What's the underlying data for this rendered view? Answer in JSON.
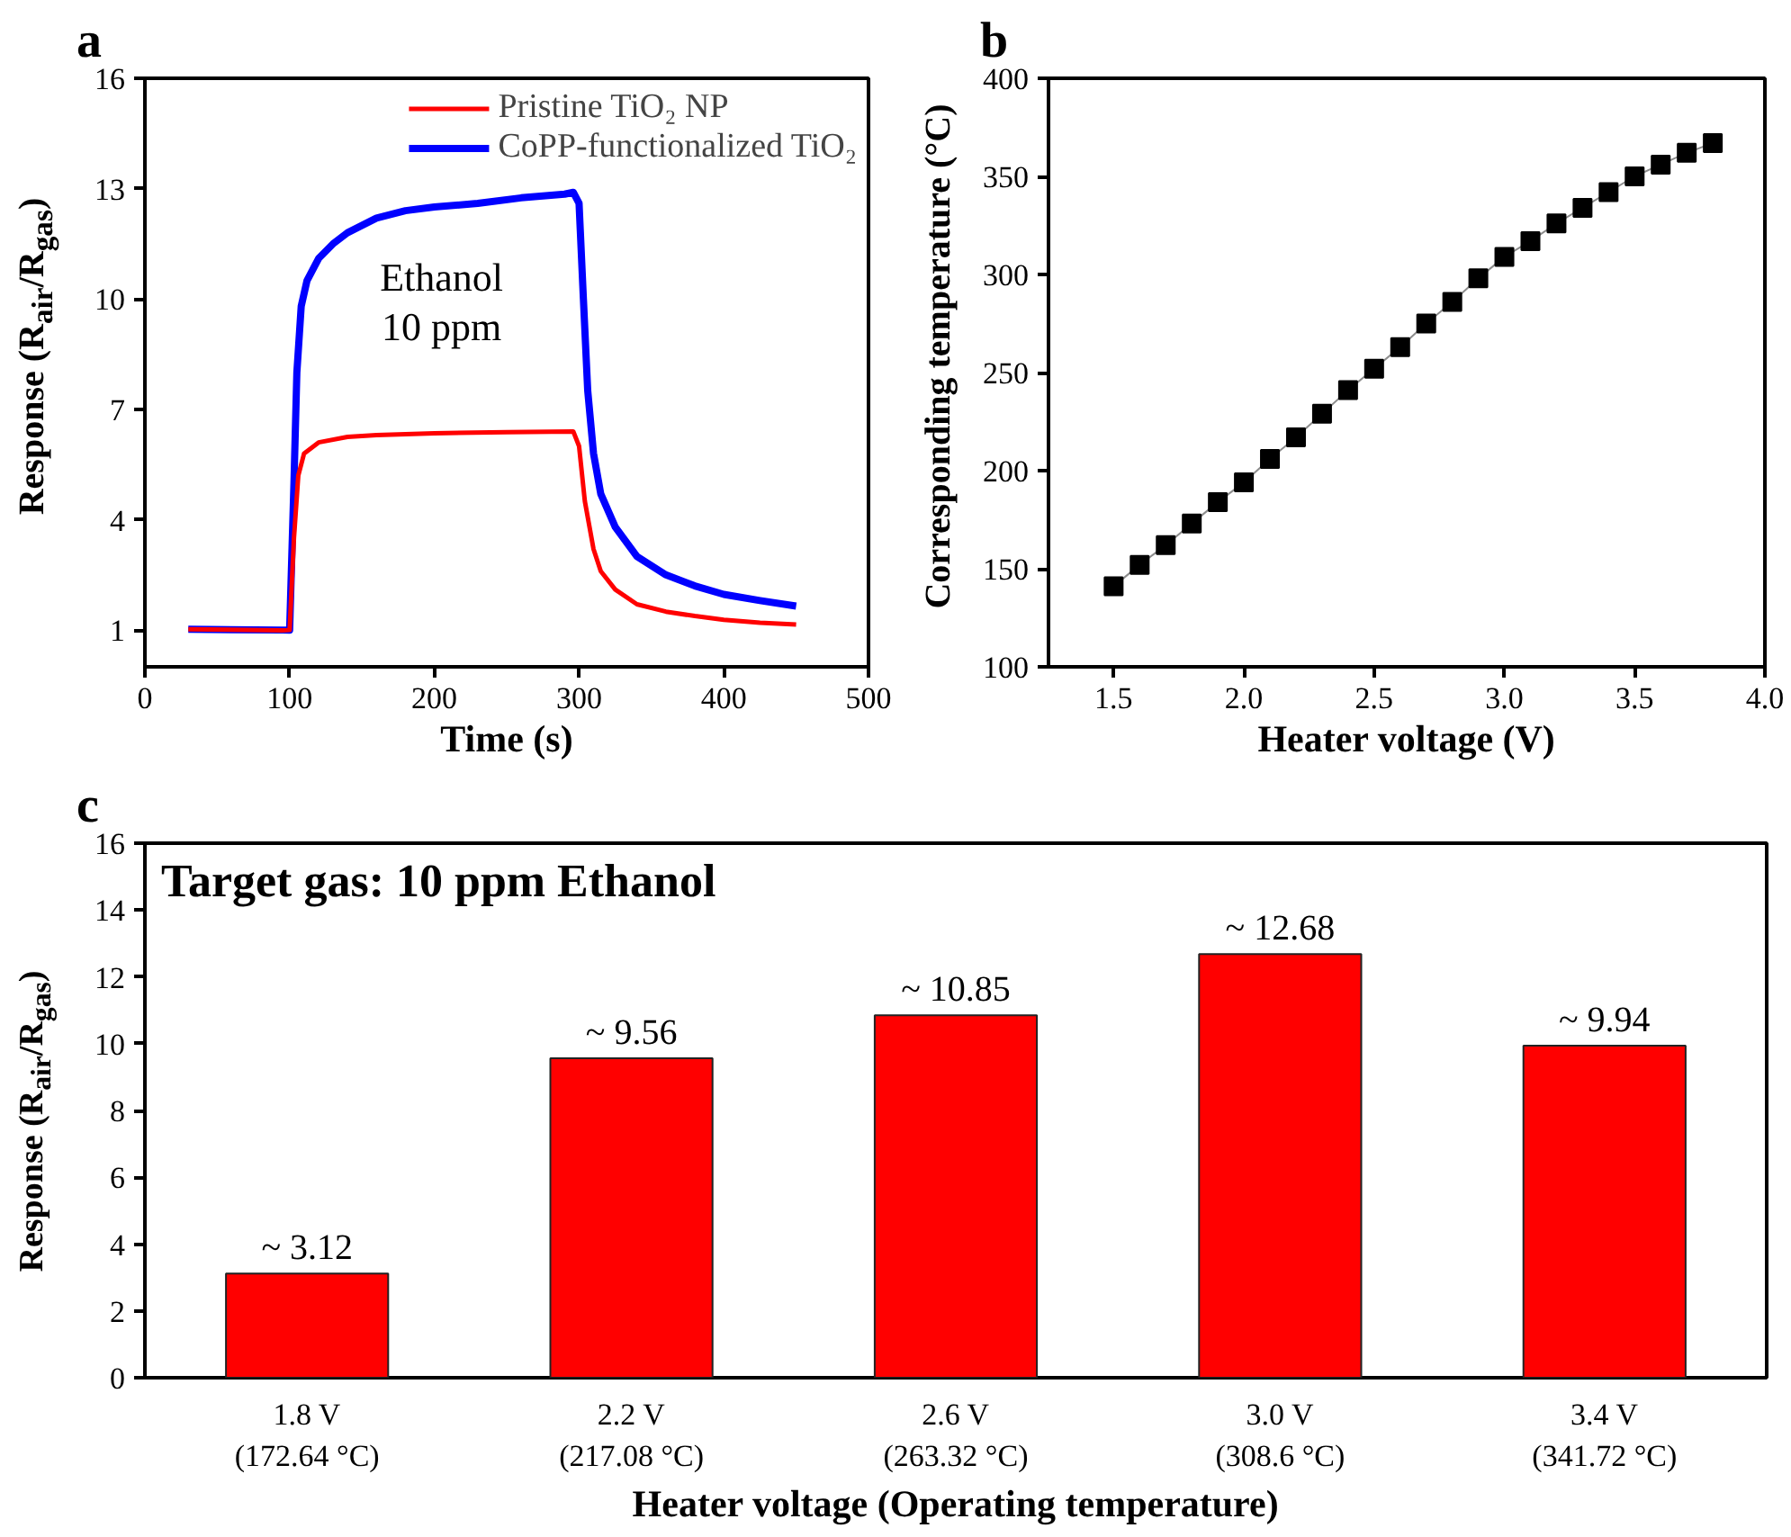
{
  "chart_data": [
    {
      "type": "line",
      "title": "a",
      "xlabel": "Time (s)",
      "ylabel": "Response (R$_{air}$/R$_{gas}$)",
      "xlim": [
        0,
        500
      ],
      "ylim": [
        0,
        16
      ],
      "xticks": [
        0,
        100,
        200,
        300,
        400,
        500
      ],
      "yticks": [
        1,
        4,
        7,
        10,
        13,
        16
      ],
      "legend": "top right",
      "annotations": [
        "Ethanol\n10 ppm"
      ],
      "series": [
        {
          "name": "Pristine TiO₂ NP",
          "color": "#ff0000",
          "x": [
            30,
            95,
            100,
            103,
            106,
            110,
            120,
            140,
            160,
            200,
            250,
            296,
            300,
            304,
            310,
            315,
            325,
            340,
            360,
            380,
            400,
            425,
            450
          ],
          "values": [
            1.02,
            0.99,
            1.0,
            3.5,
            5.2,
            5.8,
            6.1,
            6.25,
            6.3,
            6.35,
            6.38,
            6.4,
            6.0,
            4.5,
            3.2,
            2.6,
            2.1,
            1.7,
            1.5,
            1.38,
            1.28,
            1.2,
            1.15
          ]
        },
        {
          "name": "CoPP-functionalized TiO₂",
          "color": "#0000ff",
          "x": [
            30,
            95,
            100,
            103,
            105,
            108,
            112,
            120,
            130,
            140,
            160,
            180,
            200,
            230,
            260,
            290,
            296,
            300,
            303,
            306,
            310,
            315,
            325,
            340,
            360,
            380,
            400,
            425,
            450
          ],
          "values": [
            1.02,
            1.0,
            1.0,
            5.0,
            8.0,
            9.8,
            10.5,
            11.1,
            11.5,
            11.8,
            12.2,
            12.4,
            12.5,
            12.6,
            12.75,
            12.85,
            12.9,
            12.6,
            10.0,
            7.5,
            5.8,
            4.7,
            3.8,
            3.0,
            2.5,
            2.2,
            1.97,
            1.8,
            1.65
          ]
        }
      ]
    },
    {
      "type": "line",
      "title": "b",
      "xlabel": "Heater voltage (V)",
      "ylabel": "Corresponding temperature (°C)",
      "xlim": [
        1.25,
        4.0
      ],
      "ylim": [
        100,
        400
      ],
      "xticks": [
        {
          "value": 1.5,
          "label": "1.5"
        },
        {
          "value": 2.0,
          "label": "2.0"
        },
        {
          "value": 2.5,
          "label": "2.5"
        },
        {
          "value": 3.0,
          "label": "3.0"
        },
        {
          "value": 3.5,
          "label": "3.5"
        },
        {
          "value": 4.0,
          "label": "4.0"
        }
      ],
      "yticks": [
        100,
        150,
        200,
        250,
        300,
        350,
        400
      ],
      "marker": "square",
      "series": [
        {
          "color": "#000000",
          "x": [
            1.5,
            1.6,
            1.7,
            1.8,
            1.9,
            2.0,
            2.1,
            2.2,
            2.3,
            2.4,
            2.5,
            2.6,
            2.7,
            2.8,
            2.9,
            3.0,
            3.1,
            3.2,
            3.3,
            3.4,
            3.5,
            3.6,
            3.7,
            3.8
          ],
          "values": [
            141,
            152,
            162,
            173,
            184,
            194,
            206,
            217,
            229,
            241,
            252,
            263,
            275,
            286,
            298,
            309,
            317,
            326,
            334,
            342,
            350,
            356,
            362,
            367
          ]
        }
      ]
    },
    {
      "type": "bar",
      "title": "c",
      "xlabel": "Heater voltage (Operating temperature)",
      "ylabel": "Response (R$_{air}$/R$_{gas}$)",
      "categories": [
        "1.8 V\n(172.64 °C)",
        "2.2 V\n(217.08 °C)",
        "2.6 V\n(263.32 °C)",
        "3.0 V\n(308.6 °C)",
        "3.4 V\n(341.72 °C)"
      ],
      "values": [
        3.12,
        9.56,
        10.85,
        12.68,
        9.94
      ],
      "value_labels": [
        "~ 3.12",
        "~ 9.56",
        "~ 10.85",
        "~ 12.68",
        "~ 9.94"
      ],
      "color": "#ff0000",
      "ylim": [
        0,
        16
      ],
      "yticks": [
        0,
        2,
        4,
        6,
        8,
        10,
        12,
        14,
        16
      ],
      "annotations": [
        "Target gas: 10 ppm Ethanol"
      ]
    }
  ]
}
